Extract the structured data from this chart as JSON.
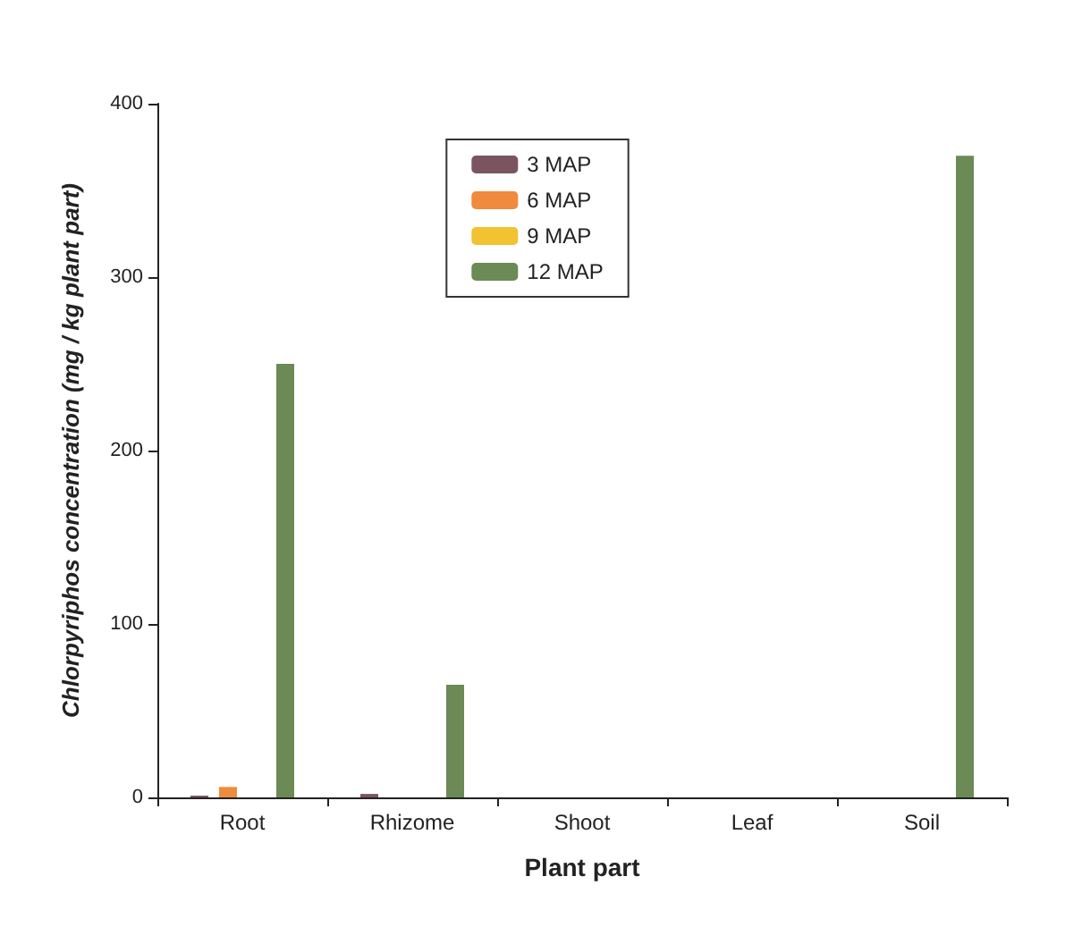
{
  "chart_data": {
    "type": "bar",
    "xlabel": "Plant part",
    "ylabel": "Chlorpyriphos concentration (mg / kg plant part)",
    "categories": [
      "Root",
      "Rhizome",
      "Shoot",
      "Leaf",
      "Soil"
    ],
    "series": [
      {
        "name": "3 MAP",
        "color": "#7a5560",
        "values": [
          1,
          2,
          null,
          null,
          null
        ]
      },
      {
        "name": "6 MAP",
        "color": "#f08a3c",
        "values": [
          6,
          null,
          null,
          null,
          null
        ]
      },
      {
        "name": "9 MAP",
        "color": "#f2c230",
        "values": [
          null,
          null,
          null,
          null,
          null
        ]
      },
      {
        "name": "12 MAP",
        "color": "#6b8a55",
        "values": [
          250,
          65,
          null,
          null,
          370
        ]
      }
    ],
    "ylim": [
      0,
      400
    ],
    "yticks": [
      0,
      100,
      200,
      300,
      400
    ],
    "grid": false,
    "legend": "top"
  }
}
